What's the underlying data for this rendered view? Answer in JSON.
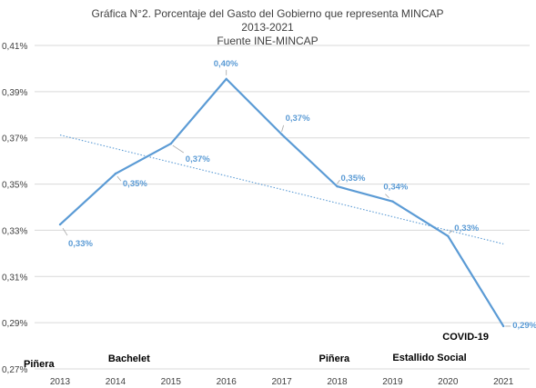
{
  "chart_data": {
    "type": "line",
    "title": "Gráfica N°2. Porcentaje del Gasto del Gobierno que representa MINCAP",
    "subtitle": "2013-2021",
    "source": "Fuente INE-MINCAP",
    "xlabel": "",
    "ylabel": "",
    "categories": [
      "2013",
      "2014",
      "2015",
      "2016",
      "2017",
      "2018",
      "2019",
      "2020",
      "2021"
    ],
    "series": [
      {
        "values": [
          0.3325,
          0.3545,
          0.3675,
          0.3955,
          0.3715,
          0.349,
          0.3425,
          0.3275,
          0.2885
        ],
        "data_labels": [
          "0,33%",
          "0,35%",
          "0,37%",
          "0,40%",
          "0,37%",
          "0,35%",
          "0,34%",
          "0,33%",
          "0,29%"
        ],
        "color": "#5b9bd5"
      }
    ],
    "trendline": {
      "kind": "linear",
      "style": "dotted",
      "color": "#5b9bd5"
    },
    "ylim": [
      0.27,
      0.41
    ],
    "yticks": [
      "0,41%",
      "0,39%",
      "0,37%",
      "0,35%",
      "0,33%",
      "0,31%",
      "0,29%",
      "0,27%"
    ],
    "ytick_values": [
      0.41,
      0.39,
      0.37,
      0.35,
      0.33,
      0.31,
      0.29,
      0.27
    ],
    "grid": true,
    "legend": "none",
    "annotations": [
      {
        "text": "Piñera",
        "at": "2013"
      },
      {
        "text": "Bachelet",
        "at": "2014"
      },
      {
        "text": "Piñera",
        "at": "2018"
      },
      {
        "text": "Estallido Social",
        "at": "2019"
      },
      {
        "text": "COVID-19",
        "at": "2020"
      }
    ]
  }
}
